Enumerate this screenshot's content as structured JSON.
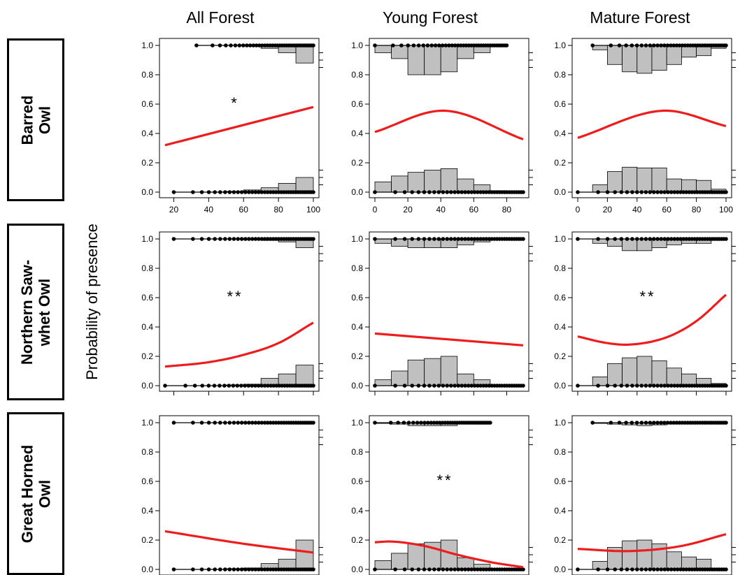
{
  "column_titles": [
    "All Forest",
    "Young Forest",
    "Mature Forest"
  ],
  "row_labels": [
    "Barred\nOwl",
    "Northern Saw-\nwhet Owl",
    "Great Horned\nOwl"
  ],
  "y_axis_title": "Probability of presence",
  "colors": {
    "curve": "#ee1c1c",
    "bar_fill": "#c0c0c0",
    "stroke": "#000000"
  },
  "chart_data": [
    {
      "type": "line",
      "row": "Barred Owl",
      "column": "All Forest",
      "significance": "*",
      "xlim": [
        15,
        100
      ],
      "ylim": [
        0,
        1
      ],
      "x_ticks": [
        20,
        40,
        60,
        80,
        100
      ],
      "show_x_labels": true,
      "y_ticks": [
        0.0,
        0.2,
        0.4,
        0.6,
        0.8,
        1.0
      ],
      "curve": {
        "x": [
          15,
          100
        ],
        "y": [
          0.32,
          0.58
        ]
      },
      "hist_bin_edges": [
        20,
        30,
        40,
        50,
        60,
        70,
        80,
        90,
        100
      ],
      "hist_absent": [
        0,
        0,
        0,
        0.005,
        0.015,
        0.03,
        0.06,
        0.1,
        0.16
      ],
      "hist_present": [
        0,
        0,
        0,
        0,
        0.005,
        0.02,
        0.05,
        0.12,
        0.2
      ],
      "rug_present_range": [
        33,
        100
      ],
      "rug_absent_range": [
        20,
        100
      ]
    },
    {
      "type": "line",
      "row": "Barred Owl",
      "column": "Young Forest",
      "significance": "",
      "xlim": [
        0,
        90
      ],
      "ylim": [
        0,
        1
      ],
      "x_ticks": [
        0,
        20,
        40,
        60,
        80
      ],
      "show_x_labels": true,
      "y_ticks": [
        0.0,
        0.2,
        0.4,
        0.6,
        0.8,
        1.0
      ],
      "curve": {
        "x": [
          0,
          42,
          90
        ],
        "y": [
          0.41,
          0.555,
          0.36
        ]
      },
      "hist_bin_edges": [
        0,
        10,
        20,
        30,
        40,
        50,
        60,
        70,
        80,
        90
      ],
      "hist_absent": [
        0.07,
        0.11,
        0.135,
        0.15,
        0.16,
        0.09,
        0.05,
        0.01,
        0.005
      ],
      "hist_present": [
        0.05,
        0.09,
        0.2,
        0.2,
        0.18,
        0.09,
        0.05,
        0.01,
        0
      ],
      "rug_present_range": [
        0,
        80
      ],
      "rug_absent_range": [
        0,
        90
      ]
    },
    {
      "type": "line",
      "row": "Barred Owl",
      "column": "Mature Forest",
      "significance": "",
      "xlim": [
        0,
        100
      ],
      "ylim": [
        0,
        1
      ],
      "x_ticks": [
        0,
        20,
        40,
        60,
        80,
        100
      ],
      "show_x_labels": true,
      "y_ticks": [
        0.0,
        0.2,
        0.4,
        0.6,
        0.8,
        1.0
      ],
      "curve": {
        "x": [
          0,
          58,
          100
        ],
        "y": [
          0.37,
          0.555,
          0.45
        ]
      },
      "hist_bin_edges": [
        0,
        10,
        20,
        30,
        40,
        50,
        60,
        70,
        80,
        90,
        100
      ],
      "hist_absent": [
        0,
        0.05,
        0.14,
        0.17,
        0.165,
        0.165,
        0.09,
        0.085,
        0.08,
        0.02
      ],
      "hist_present": [
        0,
        0.03,
        0.13,
        0.18,
        0.19,
        0.17,
        0.13,
        0.08,
        0.07,
        0.02
      ],
      "rug_present_range": [
        10,
        100
      ],
      "rug_absent_range": [
        0,
        100
      ]
    },
    {
      "type": "line",
      "row": "Northern Saw-whet Owl",
      "column": "All Forest",
      "significance": "**",
      "xlim": [
        15,
        100
      ],
      "ylim": [
        0,
        1
      ],
      "x_ticks": [
        20,
        40,
        60,
        80,
        100
      ],
      "show_x_labels": false,
      "y_ticks": [
        0.0,
        0.2,
        0.4,
        0.6,
        0.8,
        1.0
      ],
      "curve": {
        "x": [
          15,
          40,
          60,
          80,
          100
        ],
        "y": [
          0.13,
          0.16,
          0.21,
          0.29,
          0.43
        ]
      },
      "hist_bin_edges": [
        20,
        30,
        40,
        50,
        60,
        70,
        80,
        90,
        100
      ],
      "hist_absent": [
        0,
        0,
        0,
        0.005,
        0.01,
        0.05,
        0.08,
        0.14,
        0.2
      ],
      "hist_present": [
        0,
        0,
        0,
        0,
        0.005,
        0.01,
        0.02,
        0.06,
        0.12
      ],
      "rug_present_range": [
        20,
        100
      ],
      "rug_absent_range": [
        15,
        100
      ]
    },
    {
      "type": "line",
      "row": "Northern Saw-whet Owl",
      "column": "Young Forest",
      "significance": "",
      "xlim": [
        0,
        90
      ],
      "ylim": [
        0,
        1
      ],
      "x_ticks": [
        0,
        20,
        40,
        60,
        80
      ],
      "show_x_labels": false,
      "y_ticks": [
        0.0,
        0.2,
        0.4,
        0.6,
        0.8,
        1.0
      ],
      "curve": {
        "x": [
          0,
          90
        ],
        "y": [
          0.355,
          0.275
        ]
      },
      "hist_bin_edges": [
        0,
        10,
        20,
        30,
        40,
        50,
        60,
        70,
        80,
        90
      ],
      "hist_absent": [
        0.04,
        0.1,
        0.175,
        0.185,
        0.2,
        0.08,
        0.04,
        0.005,
        0.005
      ],
      "hist_present": [
        0.03,
        0.05,
        0.06,
        0.06,
        0.06,
        0.04,
        0.02,
        0.005,
        0
      ],
      "rug_present_range": [
        0,
        90
      ],
      "rug_absent_range": [
        0,
        90
      ]
    },
    {
      "type": "line",
      "row": "Northern Saw-whet Owl",
      "column": "Mature Forest",
      "significance": "**",
      "xlim": [
        0,
        100
      ],
      "ylim": [
        0,
        1
      ],
      "x_ticks": [
        0,
        20,
        40,
        60,
        80,
        100
      ],
      "show_x_labels": false,
      "y_ticks": [
        0.0,
        0.2,
        0.4,
        0.6,
        0.8,
        1.0
      ],
      "curve": {
        "x": [
          0,
          20,
          35,
          60,
          80,
          100
        ],
        "y": [
          0.335,
          0.29,
          0.28,
          0.33,
          0.44,
          0.62
        ]
      },
      "hist_bin_edges": [
        0,
        10,
        20,
        30,
        40,
        50,
        60,
        70,
        80,
        90,
        100
      ],
      "hist_absent": [
        0,
        0.06,
        0.15,
        0.19,
        0.2,
        0.17,
        0.12,
        0.08,
        0.05,
        0.015
      ],
      "hist_present": [
        0,
        0.03,
        0.05,
        0.08,
        0.08,
        0.06,
        0.04,
        0.03,
        0.03,
        0.01
      ],
      "rug_present_range": [
        0,
        100
      ],
      "rug_absent_range": [
        0,
        100
      ]
    },
    {
      "type": "line",
      "row": "Great Horned Owl",
      "column": "All Forest",
      "significance": "",
      "xlim": [
        15,
        100
      ],
      "ylim": [
        0,
        1
      ],
      "x_ticks": [
        20,
        40,
        60,
        80,
        100
      ],
      "show_x_labels": false,
      "y_ticks": [
        0.0,
        0.2,
        0.4,
        0.6,
        0.8,
        1.0
      ],
      "curve": {
        "x": [
          15,
          60,
          100
        ],
        "y": [
          0.26,
          0.175,
          0.115
        ]
      },
      "hist_bin_edges": [
        20,
        30,
        40,
        50,
        60,
        70,
        80,
        90,
        100
      ],
      "hist_absent": [
        0,
        0,
        0,
        0.005,
        0.01,
        0.04,
        0.07,
        0.2,
        0.2
      ],
      "hist_present": [
        0,
        0,
        0,
        0,
        0,
        0.005,
        0.005,
        0.01,
        0.02
      ],
      "rug_present_range": [
        20,
        100
      ],
      "rug_absent_range": [
        20,
        100
      ]
    },
    {
      "type": "line",
      "row": "Great Horned Owl",
      "column": "Young Forest",
      "significance": "**",
      "xlim": [
        0,
        90
      ],
      "ylim": [
        0,
        1
      ],
      "x_ticks": [
        0,
        20,
        40,
        60,
        80
      ],
      "show_x_labels": false,
      "y_ticks": [
        0.0,
        0.2,
        0.4,
        0.6,
        0.8,
        1.0
      ],
      "curve": {
        "x": [
          0,
          10,
          30,
          50,
          70,
          90
        ],
        "y": [
          0.185,
          0.19,
          0.16,
          0.1,
          0.05,
          0.015
        ]
      },
      "hist_bin_edges": [
        0,
        10,
        20,
        30,
        40,
        50,
        60,
        70,
        80,
        90
      ],
      "hist_absent": [
        0.06,
        0.11,
        0.175,
        0.185,
        0.2,
        0.08,
        0.035,
        0.005,
        0.005
      ],
      "hist_present": [
        0.005,
        0.01,
        0.02,
        0.02,
        0.02,
        0.005,
        0,
        0,
        0
      ],
      "rug_present_range": [
        0,
        70
      ],
      "rug_absent_range": [
        0,
        90
      ]
    },
    {
      "type": "line",
      "row": "Great Horned Owl",
      "column": "Mature Forest",
      "significance": "",
      "xlim": [
        0,
        100
      ],
      "ylim": [
        0,
        1
      ],
      "x_ticks": [
        0,
        20,
        40,
        60,
        80,
        100
      ],
      "show_x_labels": false,
      "y_ticks": [
        0.0,
        0.2,
        0.4,
        0.6,
        0.8,
        1.0
      ],
      "curve": {
        "x": [
          0,
          35,
          70,
          100
        ],
        "y": [
          0.14,
          0.125,
          0.16,
          0.24
        ]
      },
      "hist_bin_edges": [
        0,
        10,
        20,
        30,
        40,
        50,
        60,
        70,
        80,
        90,
        100
      ],
      "hist_absent": [
        0,
        0.055,
        0.15,
        0.195,
        0.2,
        0.175,
        0.12,
        0.085,
        0.07,
        0.005
      ],
      "hist_present": [
        0,
        0.005,
        0.01,
        0.015,
        0.02,
        0.015,
        0.01,
        0.01,
        0.005,
        0
      ],
      "rug_present_range": [
        10,
        100
      ],
      "rug_absent_range": [
        0,
        100
      ]
    }
  ]
}
